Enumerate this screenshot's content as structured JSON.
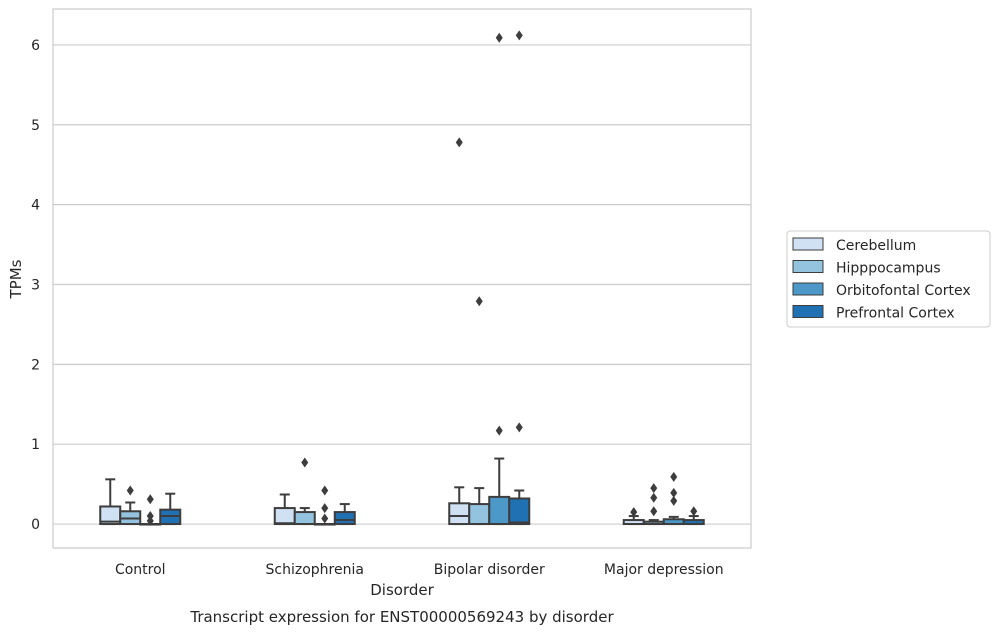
{
  "chart_data": {
    "type": "box",
    "title": "Transcript expression for ENST00000569243 by disorder",
    "xlabel": "Disorder",
    "ylabel": "TPMs",
    "ylim": [
      -0.3,
      6.45
    ],
    "yticks": [
      "0",
      "1",
      "2",
      "3",
      "4",
      "5",
      "6"
    ],
    "grid": "horizontal",
    "legend_position": "right",
    "categories": [
      "Control",
      "Schizophrenia",
      "Bipolar disorder",
      "Major depression"
    ],
    "series": [
      {
        "name": "Cerebellum",
        "color": "#cfe1f2",
        "boxes": [
          {
            "whisker_low": 0.0,
            "q1": 0.0,
            "median": 0.03,
            "q3": 0.22,
            "whisker_high": 0.56,
            "outliers": []
          },
          {
            "whisker_low": 0.0,
            "q1": 0.0,
            "median": 0.01,
            "q3": 0.2,
            "whisker_high": 0.37,
            "outliers": []
          },
          {
            "whisker_low": 0.0,
            "q1": 0.0,
            "median": 0.1,
            "q3": 0.26,
            "whisker_high": 0.46,
            "outliers": [
              4.78
            ]
          },
          {
            "whisker_low": 0.0,
            "q1": 0.0,
            "median": 0.0,
            "q3": 0.05,
            "whisker_high": 0.1,
            "outliers": [
              0.15
            ]
          }
        ]
      },
      {
        "name": "Hipppocampus",
        "color": "#93c3df",
        "boxes": [
          {
            "whisker_low": 0.0,
            "q1": 0.0,
            "median": 0.07,
            "q3": 0.16,
            "whisker_high": 0.27,
            "outliers": [
              0.42
            ]
          },
          {
            "whisker_low": 0.0,
            "q1": 0.0,
            "median": 0.0,
            "q3": 0.15,
            "whisker_high": 0.2,
            "outliers": [
              0.77
            ]
          },
          {
            "whisker_low": 0.0,
            "q1": 0.0,
            "median": 0.0,
            "q3": 0.25,
            "whisker_high": 0.45,
            "outliers": [
              2.79
            ]
          },
          {
            "whisker_low": 0.0,
            "q1": 0.0,
            "median": 0.0,
            "q3": 0.03,
            "whisker_high": 0.05,
            "outliers": [
              0.45,
              0.33,
              0.16
            ]
          }
        ]
      },
      {
        "name": "Orbitofontal Cortex",
        "color": "#4b98c9",
        "boxes": [
          {
            "whisker_low": 0.0,
            "q1": 0.0,
            "median": 0.0,
            "q3": 0.0,
            "whisker_high": 0.0,
            "outliers": [
              0.31,
              0.1,
              0.04
            ]
          },
          {
            "whisker_low": 0.0,
            "q1": 0.0,
            "median": 0.0,
            "q3": 0.0,
            "whisker_high": 0.0,
            "outliers": [
              0.42,
              0.2,
              0.07
            ]
          },
          {
            "whisker_low": 0.0,
            "q1": 0.0,
            "median": 0.0,
            "q3": 0.34,
            "whisker_high": 0.82,
            "outliers": [
              1.17,
              6.09
            ]
          },
          {
            "whisker_low": 0.0,
            "q1": 0.0,
            "median": 0.0,
            "q3": 0.06,
            "whisker_high": 0.09,
            "outliers": [
              0.59,
              0.39,
              0.29
            ]
          }
        ]
      },
      {
        "name": "Prefrontal Cortex",
        "color": "#2070b4",
        "boxes": [
          {
            "whisker_low": 0.0,
            "q1": 0.0,
            "median": 0.1,
            "q3": 0.18,
            "whisker_high": 0.38,
            "outliers": []
          },
          {
            "whisker_low": 0.0,
            "q1": 0.0,
            "median": 0.05,
            "q3": 0.15,
            "whisker_high": 0.25,
            "outliers": []
          },
          {
            "whisker_low": 0.0,
            "q1": 0.0,
            "median": 0.02,
            "q3": 0.32,
            "whisker_high": 0.42,
            "outliers": [
              1.21,
              6.12
            ]
          },
          {
            "whisker_low": 0.0,
            "q1": 0.0,
            "median": 0.0,
            "q3": 0.05,
            "whisker_high": 0.1,
            "outliers": [
              0.16
            ]
          }
        ]
      }
    ]
  }
}
